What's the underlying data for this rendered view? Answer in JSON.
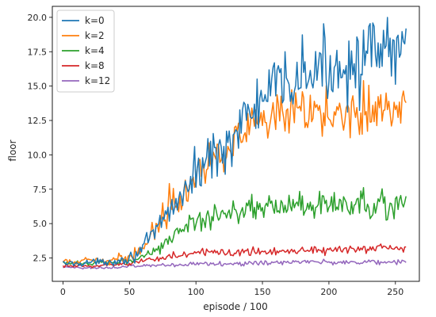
{
  "chart_data": {
    "type": "line",
    "title": "",
    "xlabel": "episode / 100",
    "ylabel": "floor",
    "xlim": [
      -8,
      268
    ],
    "ylim": [
      0.8,
      20.8
    ],
    "xticks": [
      0,
      50,
      100,
      150,
      200,
      250
    ],
    "yticks": [
      2.5,
      5.0,
      7.5,
      10.0,
      12.5,
      15.0,
      17.5,
      20.0
    ],
    "xtick_labels": [
      "0",
      "50",
      "100",
      "150",
      "200",
      "250"
    ],
    "ytick_labels": [
      "2.5",
      "5.0",
      "7.5",
      "10.0",
      "12.5",
      "15.0",
      "17.5",
      "20.0"
    ],
    "legend_position": "top-left",
    "grid": false,
    "series": [
      {
        "name": "k=0",
        "color": "#1f77b4",
        "x": [
          0,
          10,
          20,
          30,
          40,
          50,
          55,
          60,
          65,
          70,
          75,
          80,
          85,
          90,
          95,
          100,
          105,
          110,
          115,
          120,
          125,
          130,
          135,
          140,
          145,
          150,
          155,
          160,
          165,
          170,
          175,
          180,
          185,
          190,
          195,
          200,
          205,
          210,
          215,
          220,
          225,
          230,
          235,
          240,
          245,
          250,
          255,
          258
        ],
        "y": [
          2.1,
          2.1,
          2.2,
          2.2,
          2.3,
          2.5,
          2.8,
          3.2,
          3.8,
          4.4,
          5.2,
          6.0,
          6.6,
          7.1,
          7.8,
          8.6,
          9.4,
          9.8,
          10.1,
          10.6,
          11.0,
          11.8,
          12.4,
          12.8,
          13.4,
          14.0,
          14.4,
          14.7,
          15.0,
          15.3,
          15.6,
          15.7,
          15.8,
          16.0,
          16.2,
          16.3,
          16.5,
          16.6,
          16.8,
          16.8,
          16.9,
          17.0,
          17.1,
          17.2,
          17.3,
          17.3,
          17.4,
          17.5
        ],
        "amp": [
          0.15,
          0.15,
          0.15,
          0.15,
          0.2,
          0.25,
          0.3,
          0.35,
          0.4,
          0.5,
          0.6,
          0.7,
          0.8,
          0.8,
          0.9,
          1.0,
          1.0,
          1.1,
          1.1,
          1.2,
          1.2,
          1.3,
          1.3,
          1.4,
          1.4,
          1.5,
          1.5,
          1.5,
          1.6,
          1.6,
          1.6,
          1.6,
          1.6,
          1.6,
          1.6,
          1.6,
          1.6,
          1.7,
          1.7,
          1.7,
          1.7,
          1.7,
          1.8,
          1.8,
          1.8,
          1.8,
          1.8,
          1.8
        ]
      },
      {
        "name": "k=2",
        "color": "#ff7f0e",
        "x": [
          0,
          10,
          20,
          30,
          40,
          50,
          55,
          60,
          65,
          70,
          75,
          80,
          85,
          90,
          95,
          100,
          105,
          110,
          115,
          120,
          125,
          130,
          135,
          140,
          145,
          150,
          155,
          160,
          165,
          170,
          175,
          180,
          185,
          190,
          195,
          200,
          205,
          210,
          215,
          220,
          225,
          230,
          235,
          240,
          245,
          250,
          255,
          258
        ],
        "y": [
          2.2,
          2.2,
          2.3,
          2.3,
          2.4,
          2.6,
          2.9,
          3.3,
          4.0,
          4.8,
          5.6,
          6.4,
          7.0,
          7.4,
          7.9,
          8.6,
          9.2,
          9.6,
          10.0,
          10.4,
          10.8,
          11.2,
          11.4,
          11.7,
          12.0,
          12.2,
          12.3,
          12.5,
          12.6,
          12.7,
          12.8,
          12.9,
          13.0,
          13.0,
          13.0,
          13.1,
          13.2,
          13.2,
          13.3,
          13.3,
          13.3,
          13.4,
          13.4,
          13.4,
          13.4,
          13.5,
          13.5,
          13.5
        ],
        "amp": [
          0.15,
          0.15,
          0.15,
          0.15,
          0.2,
          0.25,
          0.3,
          0.35,
          0.45,
          0.55,
          0.65,
          0.7,
          0.8,
          0.8,
          0.9,
          0.9,
          1.0,
          1.0,
          1.0,
          1.0,
          1.0,
          1.1,
          1.1,
          1.1,
          1.1,
          1.1,
          1.1,
          1.1,
          1.1,
          1.1,
          1.1,
          1.1,
          1.2,
          1.2,
          1.2,
          1.2,
          1.2,
          1.2,
          1.2,
          1.2,
          1.2,
          1.2,
          1.2,
          1.2,
          1.2,
          1.2,
          1.2,
          1.2
        ]
      },
      {
        "name": "k=4",
        "color": "#2ca02c",
        "x": [
          0,
          10,
          20,
          30,
          40,
          50,
          55,
          60,
          65,
          70,
          75,
          80,
          85,
          90,
          95,
          100,
          105,
          110,
          115,
          120,
          125,
          130,
          135,
          140,
          145,
          150,
          155,
          160,
          165,
          170,
          175,
          180,
          185,
          190,
          195,
          200,
          205,
          210,
          215,
          220,
          225,
          230,
          235,
          240,
          245,
          250,
          255,
          258
        ],
        "y": [
          2.1,
          2.1,
          2.1,
          2.2,
          2.2,
          2.3,
          2.4,
          2.6,
          2.9,
          3.2,
          3.5,
          3.8,
          4.2,
          4.5,
          4.8,
          5.0,
          5.3,
          5.5,
          5.7,
          5.8,
          5.9,
          6.0,
          6.1,
          6.2,
          6.2,
          6.2,
          6.3,
          6.3,
          6.3,
          6.3,
          6.3,
          6.3,
          6.3,
          6.3,
          6.3,
          6.3,
          6.3,
          6.3,
          6.3,
          6.3,
          6.3,
          6.3,
          6.3,
          6.3,
          6.3,
          6.3,
          6.3,
          6.3
        ],
        "amp": [
          0.1,
          0.1,
          0.1,
          0.1,
          0.1,
          0.12,
          0.15,
          0.2,
          0.25,
          0.3,
          0.35,
          0.4,
          0.45,
          0.5,
          0.5,
          0.55,
          0.55,
          0.6,
          0.6,
          0.6,
          0.6,
          0.6,
          0.6,
          0.6,
          0.6,
          0.6,
          0.6,
          0.6,
          0.6,
          0.6,
          0.6,
          0.6,
          0.6,
          0.6,
          0.6,
          0.6,
          0.6,
          0.6,
          0.6,
          0.6,
          0.6,
          0.6,
          0.6,
          0.6,
          0.6,
          0.6,
          0.6,
          0.6
        ]
      },
      {
        "name": "k=8",
        "color": "#d62728",
        "x": [
          0,
          10,
          20,
          30,
          40,
          50,
          60,
          70,
          80,
          90,
          100,
          110,
          120,
          130,
          140,
          150,
          160,
          170,
          180,
          190,
          200,
          210,
          220,
          230,
          240,
          250,
          258
        ],
        "y": [
          1.9,
          1.9,
          1.9,
          2.0,
          2.0,
          2.1,
          2.3,
          2.5,
          2.6,
          2.7,
          2.8,
          2.9,
          2.9,
          3.0,
          3.0,
          3.0,
          3.0,
          3.1,
          3.1,
          3.1,
          3.1,
          3.1,
          3.1,
          3.1,
          3.2,
          3.2,
          3.2
        ],
        "amp": [
          0.08,
          0.08,
          0.08,
          0.08,
          0.08,
          0.1,
          0.12,
          0.15,
          0.18,
          0.2,
          0.2,
          0.22,
          0.22,
          0.22,
          0.22,
          0.22,
          0.22,
          0.22,
          0.22,
          0.22,
          0.22,
          0.22,
          0.22,
          0.22,
          0.22,
          0.22,
          0.22
        ]
      },
      {
        "name": "k=12",
        "color": "#9467bd",
        "x": [
          0,
          10,
          20,
          30,
          40,
          50,
          60,
          70,
          80,
          90,
          100,
          110,
          120,
          130,
          140,
          150,
          160,
          170,
          180,
          190,
          200,
          210,
          220,
          230,
          240,
          250,
          258
        ],
        "y": [
          1.8,
          1.8,
          1.8,
          1.8,
          1.8,
          1.9,
          1.9,
          2.0,
          2.0,
          2.0,
          2.1,
          2.1,
          2.1,
          2.1,
          2.1,
          2.1,
          2.2,
          2.2,
          2.2,
          2.2,
          2.2,
          2.2,
          2.2,
          2.2,
          2.2,
          2.2,
          2.2
        ],
        "amp": [
          0.06,
          0.06,
          0.06,
          0.06,
          0.06,
          0.07,
          0.08,
          0.09,
          0.1,
          0.1,
          0.1,
          0.1,
          0.11,
          0.11,
          0.11,
          0.11,
          0.11,
          0.11,
          0.11,
          0.11,
          0.11,
          0.11,
          0.11,
          0.11,
          0.11,
          0.11,
          0.11
        ]
      }
    ]
  }
}
